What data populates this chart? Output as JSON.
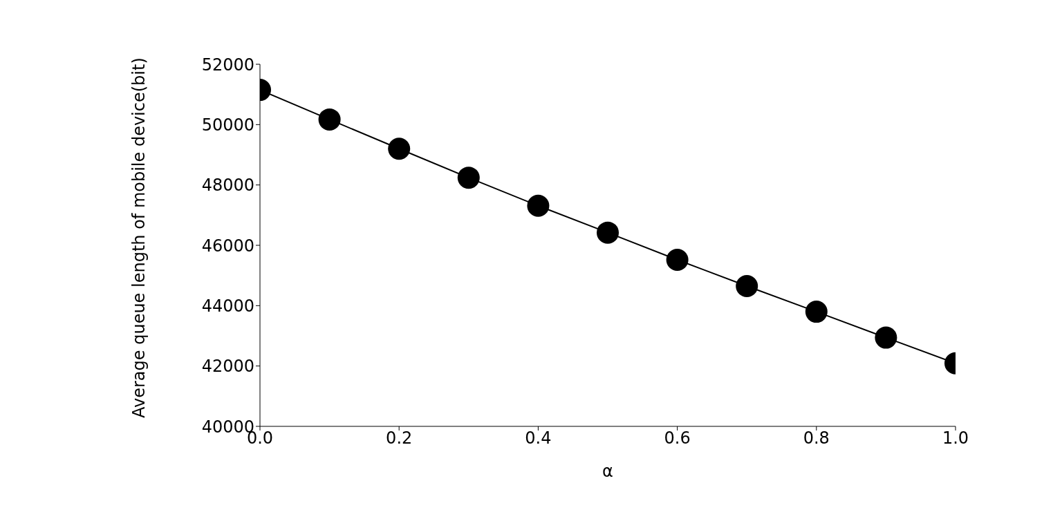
{
  "chart_data": {
    "type": "line",
    "xlabel": "α",
    "ylabel": "Average queue length of mobile device(bit)",
    "x": [
      0.0,
      0.1,
      0.2,
      0.3,
      0.4,
      0.5,
      0.6,
      0.7,
      0.8,
      0.9,
      1.0
    ],
    "series": [
      {
        "color": "#000000",
        "values": [
          51150,
          50170,
          49200,
          48240,
          47310,
          46420,
          45520,
          44650,
          43800,
          42940,
          42090
        ]
      }
    ],
    "xlim": [
      0,
      1
    ],
    "xticks": [
      {
        "value": 0,
        "label": "0.0"
      },
      {
        "value": 0.2,
        "label": "0.2"
      },
      {
        "value": 0.4,
        "label": "0.4"
      },
      {
        "value": 0.6,
        "label": "0.6"
      },
      {
        "value": 0.8,
        "label": "0.8"
      },
      {
        "value": 1,
        "label": "1.0"
      }
    ],
    "ylim": [
      40000,
      52000
    ],
    "yticks": [
      40000,
      42000,
      44000,
      46000,
      48000,
      50000,
      52000
    ],
    "grid": false,
    "legend": false,
    "marker": "circle",
    "line_style": "solid"
  }
}
